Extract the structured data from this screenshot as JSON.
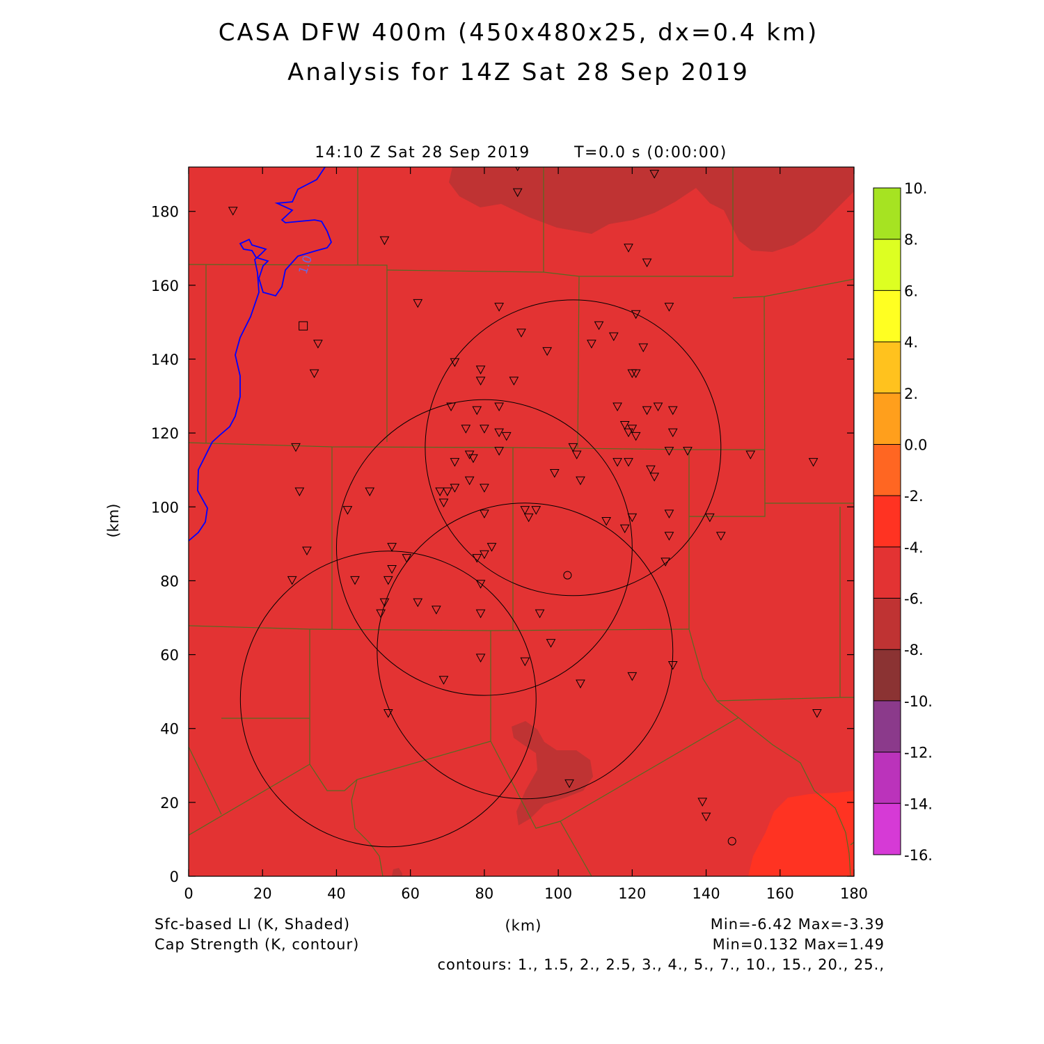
{
  "title": {
    "line1": "CASA DFW 400m (450x480x25, dx=0.4 km)",
    "line2": "Analysis for 14Z Sat 28 Sep 2019"
  },
  "panel": {
    "time_label": "14:10 Z Sat 28 Sep 2019",
    "fcst_label": "T=0.0 s (0:00:00)"
  },
  "axes": {
    "xlabel": "(km)",
    "ylabel": "(km)",
    "xlim": [
      0,
      180
    ],
    "ylim": [
      0,
      192
    ],
    "xticks": [
      0,
      20,
      40,
      60,
      80,
      100,
      120,
      140,
      160,
      180
    ],
    "yticks": [
      0,
      20,
      40,
      60,
      80,
      100,
      120,
      140,
      160,
      180
    ]
  },
  "footer": {
    "shaded_field": "Sfc-based LI (K, Shaded)",
    "contour_field": "Cap Strength (K, contour)",
    "center_label": "(km)",
    "shaded_minmax": "Min=-6.42 Max=-3.39",
    "contour_minmax": "Min=0.132 Max=1.49",
    "contours": "contours: 1., 1.5, 2., 2.5, 3., 4., 5., 7., 10., 15., 20., 25.,"
  },
  "colorbar": {
    "colors": [
      "#d63ad6",
      "#bb33bb",
      "#8b3a8b",
      "#8b3333",
      "#bf3333",
      "#e33333",
      "#ff3322",
      "#ff6622",
      "#ff9f1c",
      "#ffc21e",
      "#ffff22",
      "#ddff22",
      "#a6e322"
    ],
    "labels": [
      "-16.",
      "-14.",
      "-12.",
      "-10.",
      "-8.",
      "-6.",
      "-4.",
      "-2.",
      "0.0",
      "2.",
      "4.",
      "6.",
      "8.",
      "10."
    ]
  },
  "colors": {
    "background_field": "#e33333",
    "low_li": "#bf3333",
    "high_li": "#ff3322",
    "boundaries": "#556b22",
    "cap_contour": "#0000ff"
  },
  "contour_label": "1.0",
  "chart_data": {
    "type": "heatmap",
    "field_range": [
      -6.42,
      -3.39
    ],
    "radar_rings": [
      {
        "cx": 104,
        "cy": 116,
        "r": 40
      },
      {
        "cx": 80,
        "cy": 89,
        "r": 40
      },
      {
        "cx": 91,
        "cy": 61,
        "r": 40
      },
      {
        "cx": 54,
        "cy": 48,
        "r": 40
      }
    ],
    "radar_sites": [
      {
        "x": 102.5,
        "y": 81.5
      },
      {
        "x": 147,
        "y": 9.5
      }
    ],
    "square_site": {
      "x": 31,
      "y": 149
    },
    "stations": [
      [
        89,
        192
      ],
      [
        126,
        190
      ],
      [
        89,
        185
      ],
      [
        12,
        180
      ],
      [
        53,
        172
      ],
      [
        119,
        170
      ],
      [
        124,
        166
      ],
      [
        62,
        155
      ],
      [
        84,
        154
      ],
      [
        121,
        152
      ],
      [
        130,
        154
      ],
      [
        90,
        147
      ],
      [
        35,
        144
      ],
      [
        111,
        149
      ],
      [
        97,
        142
      ],
      [
        109,
        144
      ],
      [
        115,
        146
      ],
      [
        123,
        143
      ],
      [
        72,
        139
      ],
      [
        34,
        136
      ],
      [
        79,
        137
      ],
      [
        79,
        134
      ],
      [
        88,
        134
      ],
      [
        120,
        136
      ],
      [
        121,
        136
      ],
      [
        71,
        127
      ],
      [
        78,
        126
      ],
      [
        84,
        127
      ],
      [
        116,
        127
      ],
      [
        124,
        126
      ],
      [
        127,
        127
      ],
      [
        131,
        126
      ],
      [
        75,
        121
      ],
      [
        80,
        121
      ],
      [
        84,
        120
      ],
      [
        86,
        119
      ],
      [
        118,
        122
      ],
      [
        119,
        120
      ],
      [
        120,
        121
      ],
      [
        121,
        119
      ],
      [
        131,
        120
      ],
      [
        29,
        116
      ],
      [
        104,
        116
      ],
      [
        105,
        114
      ],
      [
        130,
        115
      ],
      [
        135,
        115
      ],
      [
        76,
        114
      ],
      [
        77,
        113
      ],
      [
        84,
        115
      ],
      [
        72,
        112
      ],
      [
        116,
        112
      ],
      [
        119,
        112
      ],
      [
        125,
        110
      ],
      [
        126,
        108
      ],
      [
        152,
        114
      ],
      [
        169,
        112
      ],
      [
        99,
        109
      ],
      [
        106,
        107
      ],
      [
        76,
        107
      ],
      [
        80,
        105
      ],
      [
        72,
        105
      ],
      [
        68,
        104
      ],
      [
        70,
        104
      ],
      [
        69,
        101
      ],
      [
        30,
        104
      ],
      [
        49,
        104
      ],
      [
        43,
        99
      ],
      [
        91,
        99
      ],
      [
        92,
        97
      ],
      [
        94,
        99
      ],
      [
        80,
        98
      ],
      [
        113,
        96
      ],
      [
        118,
        94
      ],
      [
        120,
        97
      ],
      [
        130,
        98
      ],
      [
        141,
        97
      ],
      [
        130,
        92
      ],
      [
        144,
        92
      ],
      [
        55,
        89
      ],
      [
        59,
        86
      ],
      [
        82,
        89
      ],
      [
        80,
        87
      ],
      [
        78,
        86
      ],
      [
        32,
        88
      ],
      [
        28,
        80
      ],
      [
        45,
        80
      ],
      [
        54,
        80
      ],
      [
        55,
        83
      ],
      [
        79,
        79
      ],
      [
        53,
        74
      ],
      [
        62,
        74
      ],
      [
        67,
        72
      ],
      [
        52,
        71
      ],
      [
        79,
        71
      ],
      [
        95,
        71
      ],
      [
        129,
        85
      ],
      [
        98,
        63
      ],
      [
        79,
        59
      ],
      [
        91,
        58
      ],
      [
        120,
        54
      ],
      [
        131,
        57
      ],
      [
        69,
        53
      ],
      [
        106,
        52
      ],
      [
        54,
        44
      ],
      [
        170,
        44
      ],
      [
        103,
        25
      ],
      [
        139,
        20
      ],
      [
        140,
        16
      ]
    ]
  }
}
